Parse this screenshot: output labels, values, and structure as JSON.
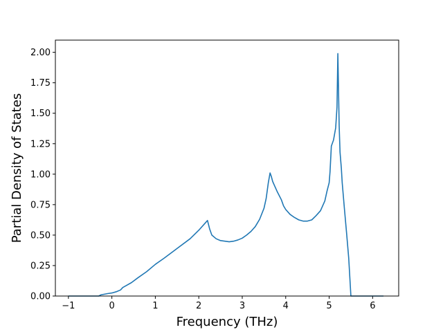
{
  "chart_data": {
    "type": "line",
    "title": "",
    "xlabel": "Frequency (THz)",
    "ylabel": "Partial Density of States",
    "xlim": [
      -1.3,
      6.6
    ],
    "ylim": [
      0,
      2.1
    ],
    "xticks": [
      -1,
      0,
      1,
      2,
      3,
      4,
      5,
      6
    ],
    "xtick_labels": [
      "−1",
      "0",
      "1",
      "2",
      "3",
      "4",
      "5",
      "6"
    ],
    "yticks": [
      0,
      0.25,
      0.5,
      0.75,
      1.0,
      1.25,
      1.5,
      1.75,
      2.0
    ],
    "ytick_labels": [
      "0.00",
      "0.25",
      "0.50",
      "0.75",
      "1.00",
      "1.25",
      "1.50",
      "1.75",
      "2.00"
    ],
    "grid": false,
    "line_color": "#1f77b4",
    "series": [
      {
        "x": [
          -1.0,
          -0.3,
          -0.25,
          -0.1,
          0.0,
          0.1,
          0.2,
          0.25,
          0.3,
          0.45,
          0.6,
          0.8,
          1.0,
          1.2,
          1.5,
          1.8,
          2.0,
          2.15,
          2.2,
          2.25,
          2.3,
          2.4,
          2.5,
          2.6,
          2.7,
          2.8,
          2.9,
          3.0,
          3.1,
          3.2,
          3.3,
          3.4,
          3.5,
          3.55,
          3.6,
          3.64,
          3.67,
          3.7,
          3.75,
          3.8,
          3.9,
          3.95,
          4.0,
          4.1,
          4.2,
          4.3,
          4.4,
          4.5,
          4.6,
          4.7,
          4.8,
          4.9,
          4.95,
          5.0,
          5.02,
          5.05,
          5.1,
          5.15,
          5.18,
          5.2,
          5.22,
          5.23,
          5.25,
          5.28,
          5.3,
          5.35,
          5.4,
          5.45,
          5.5,
          5.6,
          5.65,
          5.7,
          6.0,
          6.25
        ],
        "y": [
          0.0,
          0.0,
          0.01,
          0.02,
          0.025,
          0.035,
          0.05,
          0.07,
          0.08,
          0.11,
          0.15,
          0.2,
          0.26,
          0.31,
          0.39,
          0.47,
          0.54,
          0.6,
          0.62,
          0.55,
          0.5,
          0.47,
          0.455,
          0.45,
          0.445,
          0.45,
          0.46,
          0.475,
          0.5,
          0.53,
          0.57,
          0.63,
          0.72,
          0.8,
          0.93,
          1.01,
          0.98,
          0.94,
          0.9,
          0.86,
          0.79,
          0.74,
          0.71,
          0.67,
          0.645,
          0.625,
          0.615,
          0.615,
          0.625,
          0.66,
          0.7,
          0.78,
          0.86,
          0.93,
          1.02,
          1.23,
          1.28,
          1.38,
          1.55,
          1.99,
          1.6,
          1.4,
          1.18,
          1.05,
          0.93,
          0.72,
          0.52,
          0.31,
          0.0,
          0.0,
          0.0,
          0.0,
          0.0,
          0.0
        ]
      }
    ]
  }
}
